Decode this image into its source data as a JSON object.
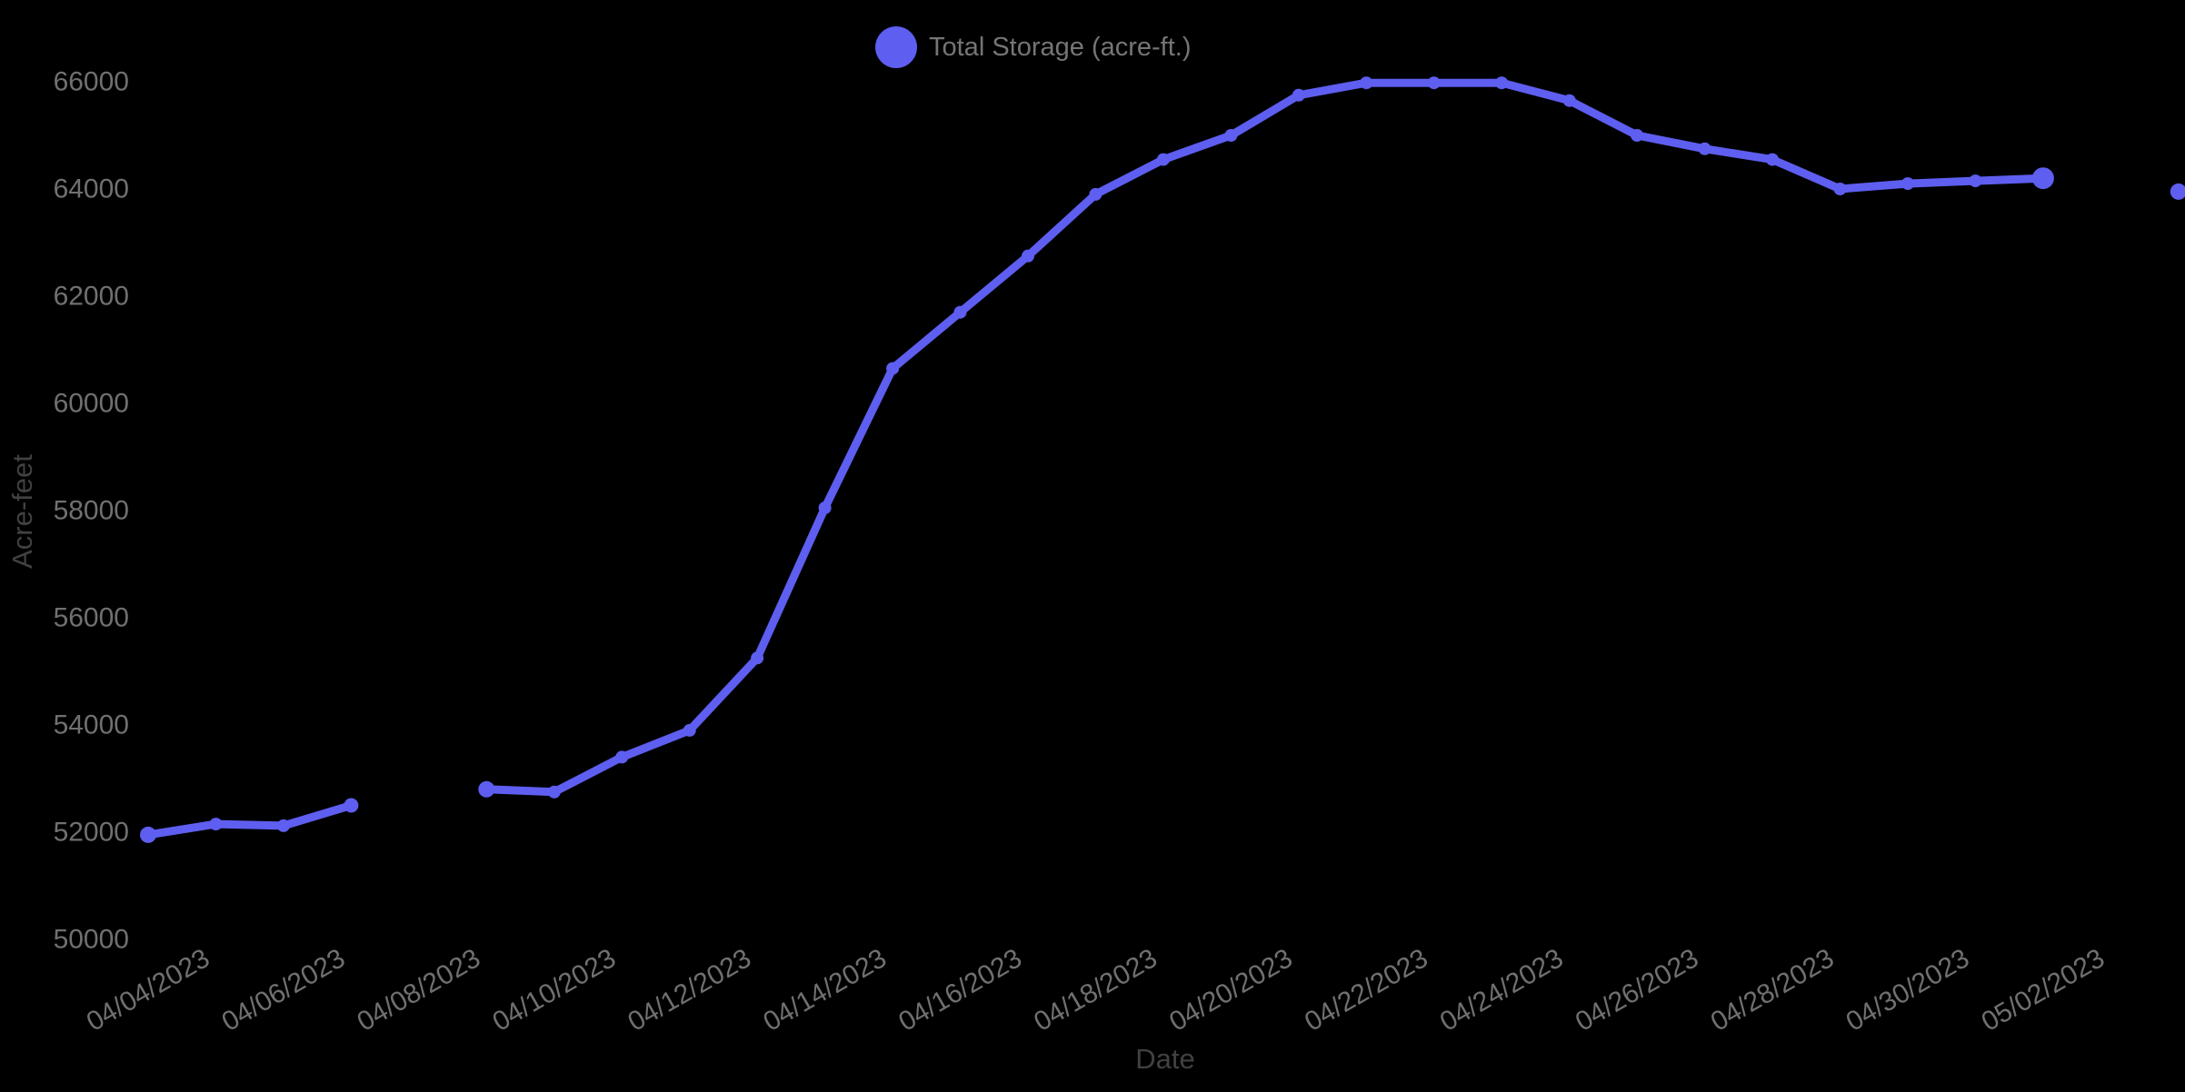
{
  "chart_data": {
    "type": "line",
    "title": "",
    "xlabel": "Date",
    "ylabel": "Acre-feet",
    "legend_position": "top-center",
    "grid": false,
    "background_color": "#000000",
    "tick_label_color": "#707070",
    "axis_title_color": "#414141",
    "legend_text_color": "#757575",
    "ylim": [
      50000,
      66000
    ],
    "yticks": [
      66000,
      64000,
      62000,
      60000,
      58000,
      56000,
      54000,
      52000,
      50000
    ],
    "x_tick_labels": [
      "04/04/2023",
      "04/06/2023",
      "04/08/2023",
      "04/10/2023",
      "04/12/2023",
      "04/14/2023",
      "04/16/2023",
      "04/18/2023",
      "04/20/2023",
      "04/22/2023",
      "04/24/2023",
      "04/26/2023",
      "04/28/2023",
      "04/30/2023",
      "05/02/2023"
    ],
    "series": [
      {
        "name": "Total Storage (acre-ft.)",
        "color": "#5E5EF0",
        "x": [
          "04/04/2023",
          "04/05/2023",
          "04/06/2023",
          "04/07/2023",
          "04/08/2023",
          "04/09/2023",
          "04/10/2023",
          "04/11/2023",
          "04/12/2023",
          "04/13/2023",
          "04/14/2023",
          "04/15/2023",
          "04/16/2023",
          "04/17/2023",
          "04/18/2023",
          "04/19/2023",
          "04/20/2023",
          "04/21/2023",
          "04/22/2023",
          "04/23/2023",
          "04/24/2023",
          "04/25/2023",
          "04/26/2023",
          "04/27/2023",
          "04/28/2023",
          "04/29/2023",
          "04/30/2023",
          "05/01/2023",
          "05/02/2023",
          "05/03/2023",
          "05/04/2023"
        ],
        "values": [
          51950,
          52150,
          52120,
          52500,
          null,
          52800,
          52750,
          53400,
          53900,
          55250,
          58050,
          60650,
          61700,
          62750,
          63900,
          64550,
          65000,
          65750,
          65980,
          65980,
          65980,
          65650,
          65000,
          64750,
          64550,
          64000,
          64100,
          64150,
          64200,
          null,
          63950
        ]
      }
    ]
  }
}
